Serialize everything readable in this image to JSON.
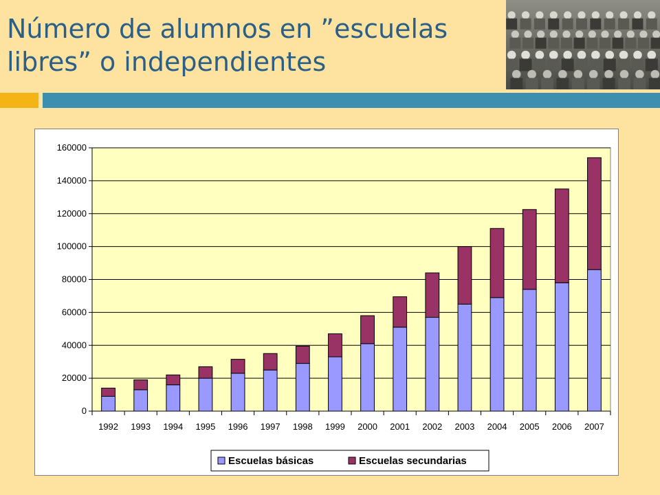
{
  "slide": {
    "title": "Número de alumnos en ”escuelas libres” o independientes",
    "photo_icon": "class-photo",
    "colors": {
      "background": "#FEE3A0",
      "title": "#2B5F86",
      "accent_orange": "#F5B415",
      "accent_blue": "#3D8FAF"
    }
  },
  "chart_data": {
    "type": "bar",
    "stacked": true,
    "title": "",
    "xlabel": "",
    "ylabel": "",
    "ylim": [
      0,
      160000
    ],
    "yticks": [
      0,
      20000,
      40000,
      60000,
      80000,
      100000,
      120000,
      140000,
      160000
    ],
    "grid": true,
    "legend_position": "bottom",
    "categories": [
      "1992",
      "1993",
      "1994",
      "1995",
      "1996",
      "1997",
      "1998",
      "1999",
      "2000",
      "2001",
      "2002",
      "2003",
      "2004",
      "2005",
      "2006",
      "2007"
    ],
    "series": [
      {
        "name": "Escuelas básicas",
        "color": "#9999FF",
        "values": [
          9000,
          13000,
          16000,
          20000,
          23000,
          25000,
          29000,
          33000,
          41000,
          51000,
          57000,
          65000,
          69000,
          74000,
          78000,
          86000
        ]
      },
      {
        "name": "Escuelas secundarias",
        "color": "#993366",
        "values": [
          5000,
          6000,
          6000,
          7000,
          8500,
          10000,
          10500,
          14000,
          17000,
          18500,
          27000,
          35000,
          42000,
          48500,
          57000,
          68000
        ]
      }
    ],
    "plot_background": "#FFFFC0"
  }
}
